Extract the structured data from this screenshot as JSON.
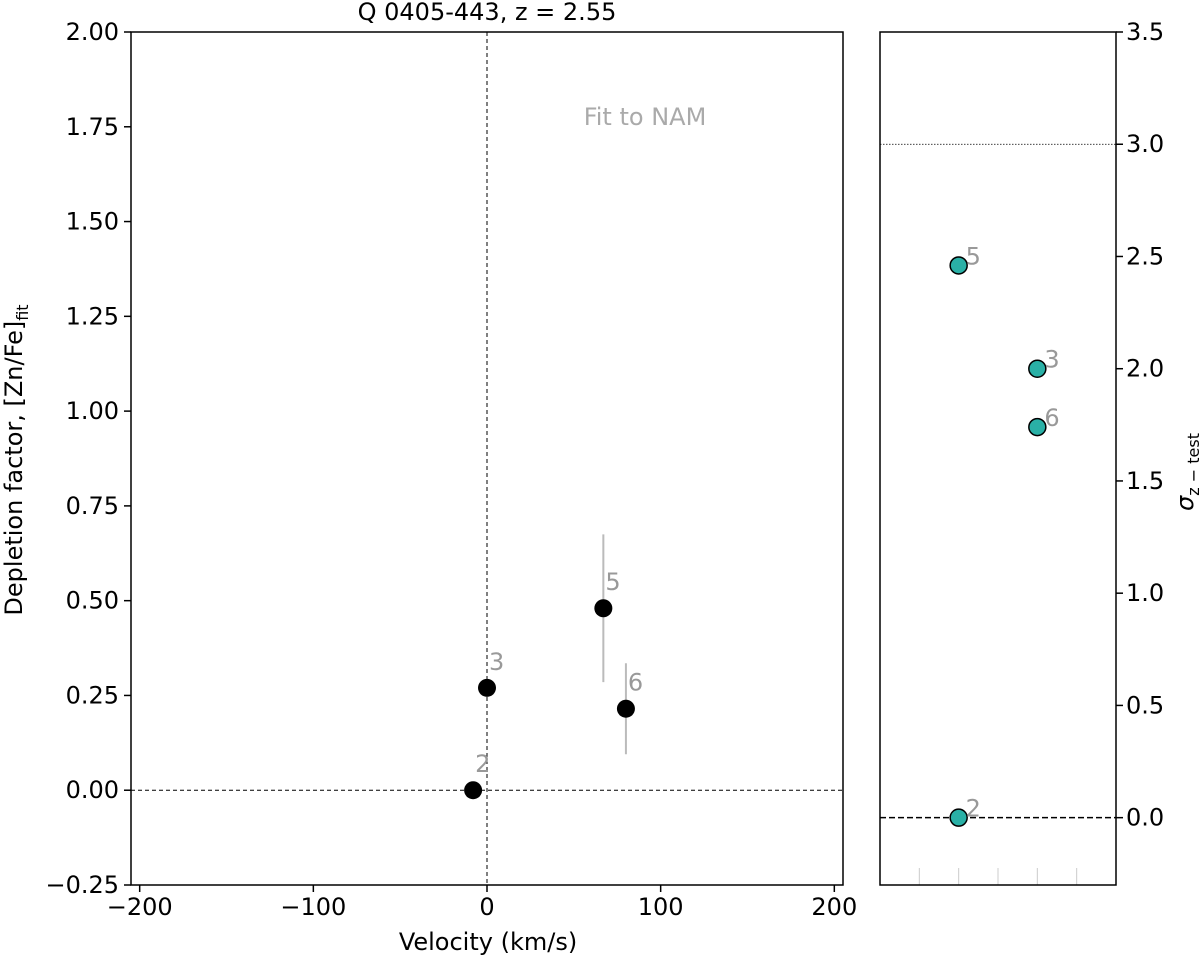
{
  "chart_data": [
    {
      "type": "scatter",
      "title": "Q 0405-443, z = 2.55",
      "xlabel": "Velocity (km/s)",
      "ylabel_main": "Depletion factor, [Zn/Fe]",
      "ylabel_sub": "fit",
      "xlim": [
        -205,
        205
      ],
      "ylim": [
        -0.25,
        2.0
      ],
      "xticks": [
        -200,
        -100,
        0,
        100,
        200
      ],
      "xtick_labels": [
        "−200",
        "−100",
        "0",
        "100",
        "200"
      ],
      "yticks": [
        -0.25,
        0.0,
        0.25,
        0.5,
        0.75,
        1.0,
        1.25,
        1.5,
        1.75,
        2.0
      ],
      "ytick_labels": [
        "−0.25",
        "0.00",
        "0.25",
        "0.50",
        "0.75",
        "1.00",
        "1.25",
        "1.50",
        "1.75",
        "2.00"
      ],
      "annotation": "Fit to NAM",
      "hline": 0.0,
      "vline": 0,
      "grid": false,
      "points": [
        {
          "label": "2",
          "x": -8,
          "y": 0.0,
          "err": 0
        },
        {
          "label": "3",
          "x": 0,
          "y": 0.27,
          "err": 0
        },
        {
          "label": "5",
          "x": 67,
          "y": 0.48,
          "err": 0.195
        },
        {
          "label": "6",
          "x": 80,
          "y": 0.215,
          "err": 0.12
        }
      ],
      "marker_color": "#000000",
      "errorbar_color": "#bbbbbb",
      "label_color": "#999999"
    },
    {
      "type": "scatter",
      "ylabel_main": "σ",
      "ylabel_sub": "z − test",
      "ylim": [
        -0.3,
        3.5
      ],
      "yticks": [
        0.0,
        0.5,
        1.0,
        1.5,
        2.0,
        2.5,
        3.0,
        3.5
      ],
      "ytick_labels": [
        "0.0",
        "0.5",
        "1.0",
        "1.5",
        "2.0",
        "2.5",
        "3.0",
        "3.5"
      ],
      "yaxis_position": "right",
      "hline_dotted": 3.0,
      "hline_dashed": 0.0,
      "xlim": [
        0,
        6
      ],
      "xticks": [
        1,
        2,
        3,
        4,
        5
      ],
      "points": [
        {
          "label": "2",
          "x": 2,
          "y": 0.0
        },
        {
          "label": "3",
          "x": 4,
          "y": 2.0
        },
        {
          "label": "5",
          "x": 2,
          "y": 2.46
        },
        {
          "label": "6",
          "x": 4,
          "y": 1.74
        }
      ],
      "marker_color": "#2ab0a6",
      "label_color": "#999999"
    }
  ]
}
